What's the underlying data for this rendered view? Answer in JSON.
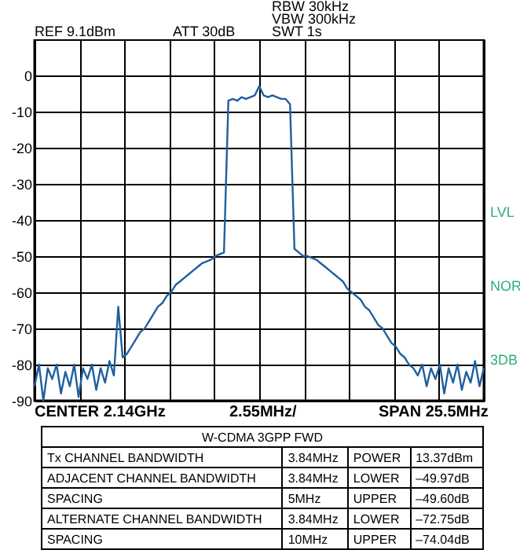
{
  "chart_data": {
    "type": "line",
    "categories": [
      null,
      null,
      null,
      null,
      null,
      null,
      null,
      null,
      null,
      null,
      null,
      null,
      null,
      null,
      null,
      null,
      null,
      null,
      null,
      null,
      null,
      null,
      null,
      null,
      null,
      null,
      null,
      null,
      null,
      null,
      null,
      null,
      null,
      null,
      null,
      null,
      null,
      null,
      null,
      null,
      null,
      null,
      null,
      null,
      null,
      null,
      null,
      null,
      null,
      null,
      null,
      null,
      null,
      null,
      null,
      null,
      null,
      null,
      null,
      null,
      null,
      null,
      null,
      null,
      null,
      null,
      null,
      null,
      null,
      null,
      null,
      null,
      null,
      null,
      null,
      null,
      null,
      null,
      null,
      null,
      null,
      null,
      null,
      null,
      null,
      null,
      null,
      null,
      null,
      null,
      null,
      null,
      null,
      null,
      null,
      null,
      null,
      null,
      null,
      null,
      null,
      null,
      null
    ],
    "series": [
      {
        "color": "#1f5f9f",
        "values": [
          -86,
          -80,
          -90,
          -81,
          -84,
          -80,
          -88,
          -82,
          -86,
          -80,
          -89,
          -81,
          -84,
          -80,
          -87,
          -81,
          -85,
          -79,
          -83,
          -64,
          -78,
          -77,
          -75,
          -73,
          -71,
          -70,
          -68,
          -66,
          -64,
          -63,
          -61,
          -60,
          -58,
          -57,
          -56,
          -55,
          -54,
          -53,
          -52,
          -51.5,
          -51,
          -50,
          -49.5,
          -49,
          -7,
          -6.5,
          -7,
          -6,
          -6.5,
          -6,
          -5.5,
          -3,
          -5.5,
          -6,
          -5.5,
          -6,
          -6.5,
          -6.5,
          -8,
          -48,
          -49,
          -50,
          -50,
          -50.5,
          -51,
          -52,
          -53,
          -54,
          -55,
          -56,
          -57,
          -59,
          -60,
          -61,
          -62,
          -64,
          -65,
          -67,
          -69,
          -70,
          -72,
          -74,
          -75,
          -77,
          -78,
          -80,
          -81,
          -83,
          -80,
          -86,
          -81,
          -84,
          -80,
          -88,
          -81,
          -85,
          -80,
          -87,
          -82,
          -85,
          -79,
          -86,
          -81
        ]
      }
    ],
    "ylim": [
      -90,
      10
    ],
    "yticks": [
      -90,
      -80,
      -70,
      -60,
      -50,
      -40,
      -30,
      -20,
      -10,
      0,
      {
        "value": 10,
        "label": null
      }
    ],
    "tick_labels": "y",
    "grid": true,
    "annotations": [
      "REF 9.1dBm",
      "ATT 30dB",
      "RBW 30kHz",
      "VBW 300kHz",
      "SWT 1s",
      "LVL",
      "NOR",
      "3DB",
      "CENTER 2.14GHz",
      "2.55MHz/",
      "SPAN 25.5MHz",
      "W-CDMA 3GPP FWD",
      "Tx CHANNEL BANDWIDTH\t3.84MHz\tPOWER\t13.37dBm",
      "ADJACENT CHANNEL BANDWIDTH\t3.84MHz\tLOWER\t–49.97dB",
      "SPACING\t5MHz\tUPPER\t–49.60dB",
      "ALTERNATE CHANNEL BANDWIDTH\t3.84MHz\tLOWER\t–72.75dB",
      "SPACING\t10MHz\tUPPER\t–74.04dB"
    ]
  }
}
